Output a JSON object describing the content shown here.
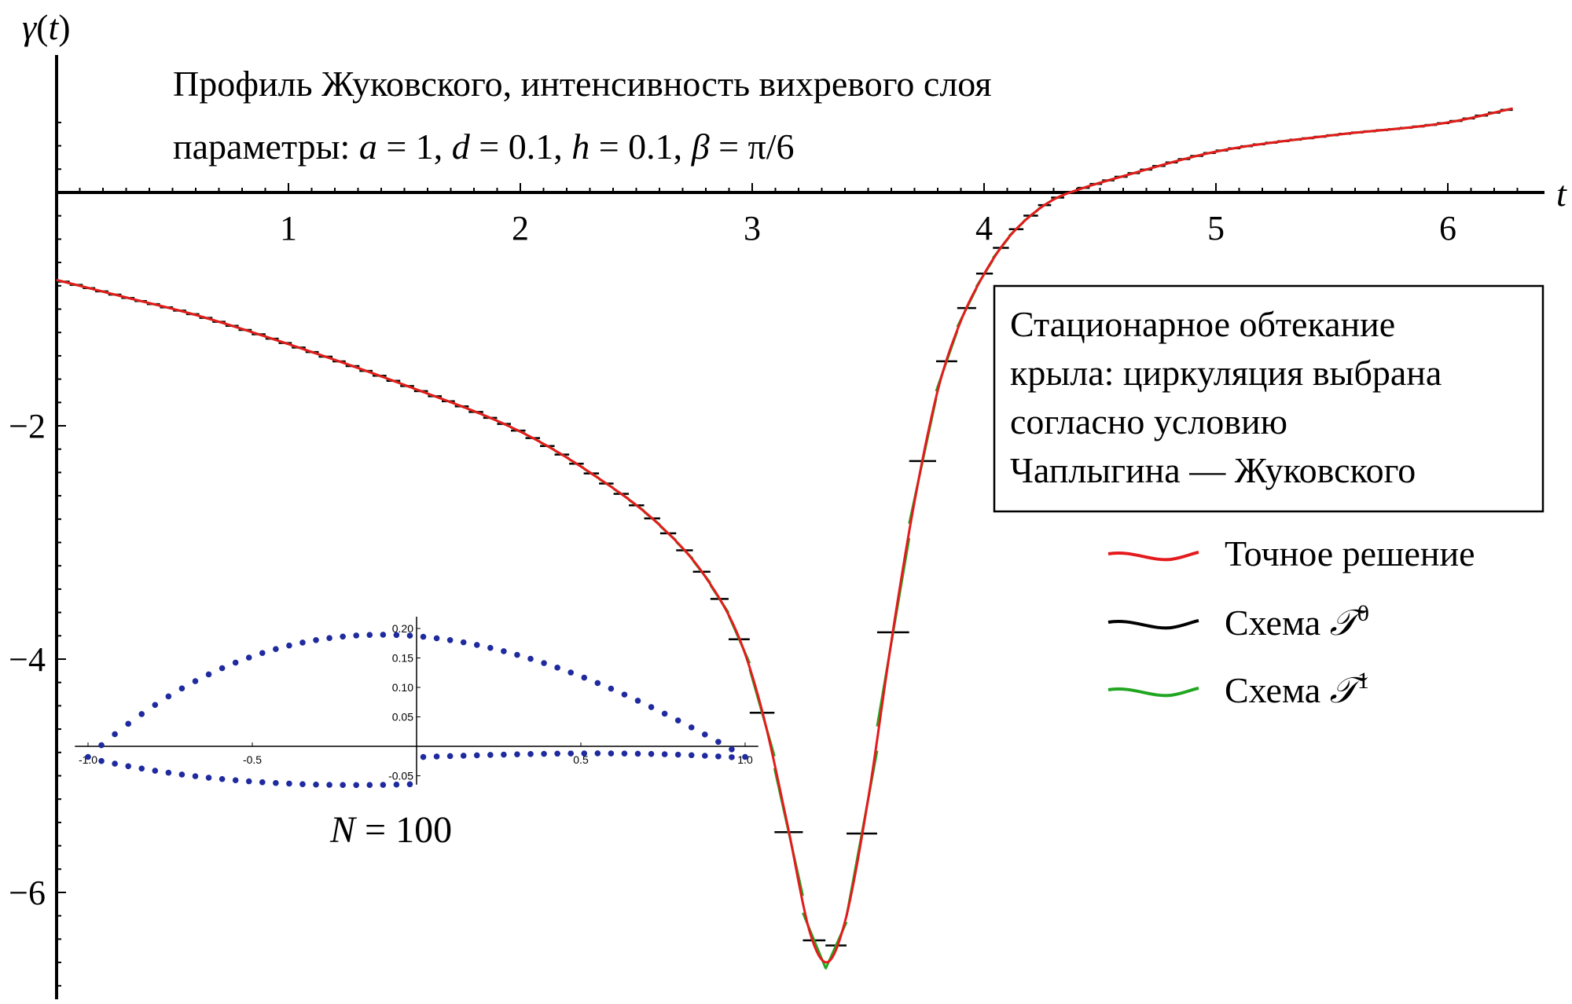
{
  "chart_data": {
    "type": "line",
    "title_line1": "Профиль Жуковского, интенсивность вихревого слоя",
    "title_line2": "параметры: a = 1, d = 0.1, h = 0.1, β = π/6",
    "xlabel": "t",
    "ylabel": "γ(t)",
    "xlim": [
      0,
      6.4
    ],
    "ylim": [
      -6.9,
      0.7
    ],
    "x_ticks": [
      1,
      2,
      3,
      4,
      5,
      6
    ],
    "x_tick_labels": [
      "1",
      "2",
      "3",
      "4",
      "5",
      "6"
    ],
    "y_ticks": [
      -2,
      -4,
      -6
    ],
    "y_tick_labels": [
      "−2",
      "−4",
      "−6"
    ],
    "info_box": [
      "Стационарное обтекание",
      "крыла: циркуляция выбрана",
      "согласно условию",
      "Чаплыгина — Жуковского"
    ],
    "N_label": "N = 100",
    "legend": {
      "position": "right",
      "entries": [
        {
          "label": "Точное решение",
          "color": "#e41a1c"
        },
        {
          "label": "Схема 𝒯⁰",
          "color": "#000000"
        },
        {
          "label": "Схема 𝒯¹",
          "color": "#21a621"
        }
      ]
    },
    "series": [
      {
        "name": "Точное решение",
        "color": "#e41a1c",
        "x": [
          0,
          0.3,
          0.6,
          1.0,
          1.5,
          2.0,
          2.3,
          2.6,
          2.8,
          2.95,
          3.05,
          3.15,
          3.25,
          3.32,
          3.4,
          3.5,
          3.6,
          3.7,
          3.8,
          3.9,
          4.0,
          4.1,
          4.2,
          4.3,
          4.4,
          4.6,
          5.0,
          5.5,
          6.0,
          6.28
        ],
        "y": [
          -0.75,
          -0.9,
          -1.05,
          -1.3,
          -1.65,
          -2.05,
          -2.4,
          -2.85,
          -3.3,
          -3.85,
          -4.5,
          -5.4,
          -6.35,
          -6.6,
          -6.25,
          -5.2,
          -3.85,
          -2.65,
          -1.7,
          -1.1,
          -0.7,
          -0.4,
          -0.2,
          -0.06,
          0.02,
          0.14,
          0.35,
          0.49,
          0.6,
          0.72
        ]
      }
    ],
    "scheme_T0_description": "piecewise-constant approximation, one horizontal segment per panel",
    "scheme_T1_description": "piecewise-linear approximation, one slanted segment per panel",
    "inset": {
      "type": "scatter",
      "color": "#1f2a9e",
      "xlim": [
        -1.05,
        1.05
      ],
      "ylim": [
        -0.065,
        0.225
      ],
      "x_ticks": [
        -1.0,
        -0.5,
        0.5,
        1.0
      ],
      "x_tick_labels": [
        "-1.0",
        "-0.5",
        "0.5",
        "1.0"
      ],
      "y_ticks": [
        0.05,
        0.1,
        0.15,
        0.2,
        -0.05
      ],
      "y_tick_labels": [
        "0.05",
        "0.10",
        "0.15",
        "0.20",
        "-0.05"
      ]
    }
  }
}
